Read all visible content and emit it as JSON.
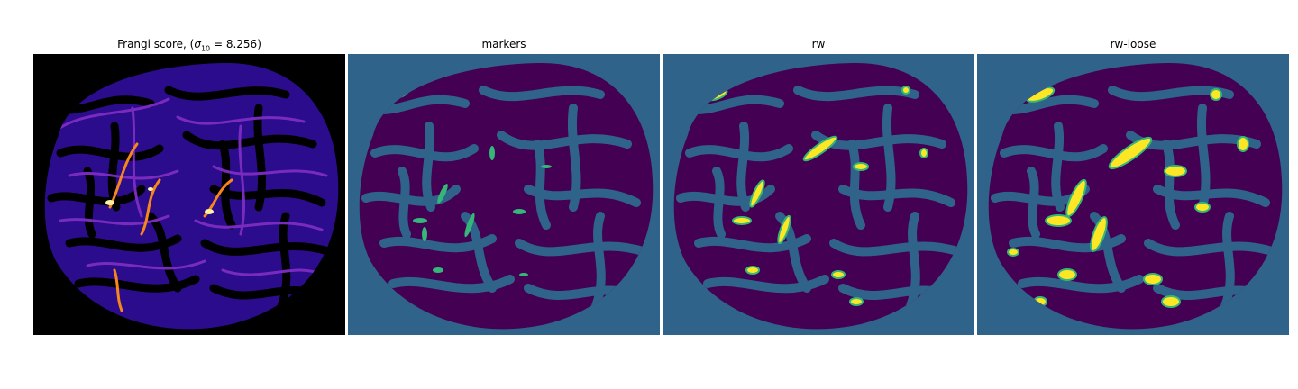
{
  "figure": {
    "panels": [
      {
        "id": "frangi",
        "title_prefix": "Frangi score, (",
        "title_symbol": "σ",
        "title_subscript": "10",
        "title_suffix": " = 8.256)",
        "colormap": "magma",
        "background": "#000000"
      },
      {
        "id": "markers",
        "title": "markers",
        "colormap": "viridis",
        "background": "#30638a"
      },
      {
        "id": "rw",
        "title": "rw",
        "colormap": "viridis",
        "background": "#30638a"
      },
      {
        "id": "rw-loose",
        "title": "rw-loose",
        "colormap": "viridis",
        "background": "#30638a"
      }
    ],
    "colors": {
      "magma_black": "#000000",
      "magma_indigo": "#2a0c8c",
      "magma_purple": "#7a2bbf",
      "magma_orange": "#f7861b",
      "magma_yellow": "#fcf3a2",
      "viridis_purple": "#440154",
      "viridis_blue": "#30638a",
      "viridis_green": "#35b779",
      "viridis_yellow": "#fde725"
    }
  }
}
